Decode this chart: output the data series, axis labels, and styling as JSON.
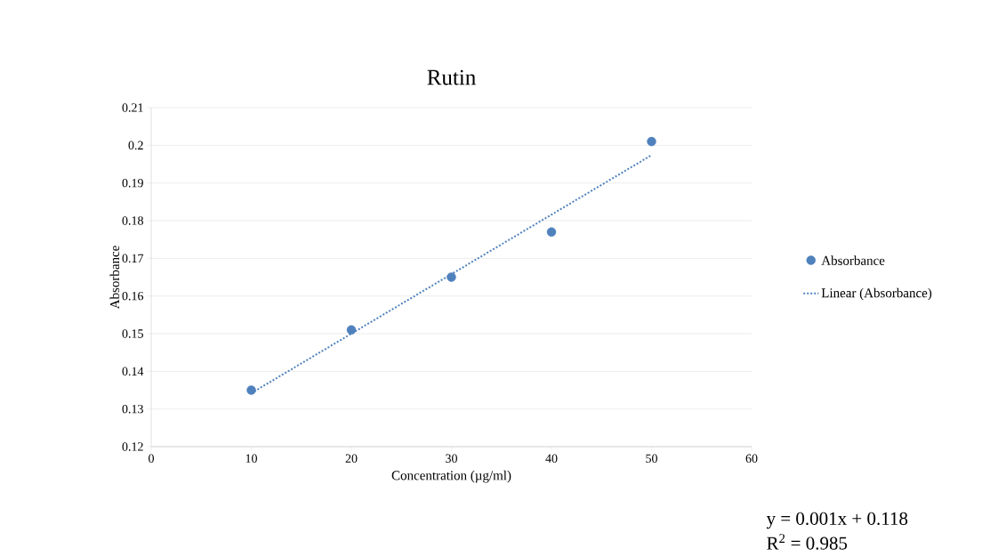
{
  "chart_data": {
    "type": "scatter",
    "title": "Rutin",
    "xlabel": "Concentration (µg/ml)",
    "ylabel": "Absorbance",
    "x": [
      10,
      20,
      30,
      40,
      50
    ],
    "series": [
      {
        "name": "Absorbance",
        "color": "#4f81bd",
        "values": [
          0.135,
          0.151,
          0.165,
          0.177,
          0.201
        ],
        "marker": "circle"
      },
      {
        "name": "Linear (Absorbance)",
        "type": "line",
        "color": "#4f81bd",
        "x": [
          10,
          50
        ],
        "values": [
          0.1342,
          0.1974
        ],
        "line_style": "dotted",
        "marker": "none"
      }
    ],
    "xlim": [
      0,
      60
    ],
    "xticks": [
      0,
      10,
      20,
      30,
      40,
      50,
      60
    ],
    "ylim": [
      0.12,
      0.21
    ],
    "yticks": [
      0.12,
      0.13,
      0.14,
      0.15,
      0.16,
      0.17,
      0.18,
      0.19,
      0.2,
      0.21
    ],
    "grid": "y",
    "legend": "right",
    "annotations": [
      "y = 0.001x + 0.118",
      "R$^{2}$ = 0.985"
    ]
  }
}
